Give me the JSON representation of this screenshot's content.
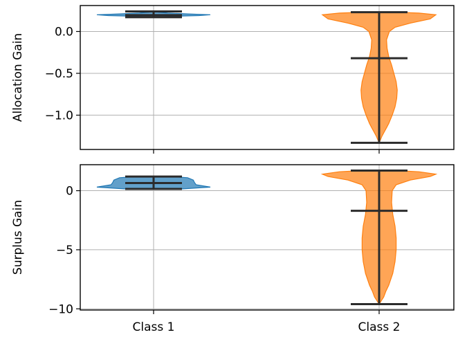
{
  "chart_data": {
    "type": "violin",
    "categories": [
      "Class 1",
      "Class 2"
    ],
    "colors": [
      "#1f77b4",
      "#ff7f0e"
    ],
    "grid": true,
    "panels": [
      {
        "ylabel": "Allocation Gain",
        "ylim": [
          -1.41,
          0.31
        ],
        "yticks": [
          0.0,
          -0.5,
          -1.0
        ],
        "ytick_labels": [
          "0.0",
          "−0.5",
          "−1.0"
        ],
        "violins": [
          {
            "category": "Class 1",
            "min": 0.17,
            "mean": 0.195,
            "max": 0.24,
            "profile": [
              [
                0.17,
                0.05
              ],
              [
                0.18,
                0.25
              ],
              [
                0.19,
                0.8
              ],
              [
                0.2,
                1.0
              ],
              [
                0.21,
                0.6
              ],
              [
                0.22,
                0.25
              ],
              [
                0.23,
                0.08
              ],
              [
                0.24,
                0.02
              ]
            ]
          },
          {
            "category": "Class 2",
            "min": -1.33,
            "mean": -0.32,
            "max": 0.23,
            "profile": [
              [
                -1.33,
                0.0
              ],
              [
                -1.3,
                0.02
              ],
              [
                -1.25,
                0.05
              ],
              [
                -1.2,
                0.09
              ],
              [
                -1.15,
                0.13
              ],
              [
                -1.1,
                0.17
              ],
              [
                -1.0,
                0.23
              ],
              [
                -0.9,
                0.28
              ],
              [
                -0.8,
                0.31
              ],
              [
                -0.7,
                0.32
              ],
              [
                -0.6,
                0.3
              ],
              [
                -0.5,
                0.26
              ],
              [
                -0.4,
                0.22
              ],
              [
                -0.3,
                0.17
              ],
              [
                -0.2,
                0.14
              ],
              [
                -0.1,
                0.13
              ],
              [
                0.0,
                0.18
              ],
              [
                0.05,
                0.28
              ],
              [
                0.1,
                0.55
              ],
              [
                0.15,
                0.9
              ],
              [
                0.2,
                1.0
              ],
              [
                0.22,
                0.7
              ],
              [
                0.23,
                0.3
              ]
            ]
          }
        ]
      },
      {
        "ylabel": "Surplus Gain",
        "ylim": [
          -10.1,
          2.2
        ],
        "yticks": [
          0,
          -5,
          -10
        ],
        "ytick_labels": [
          "0",
          "−5",
          "−10"
        ],
        "violins": [
          {
            "category": "Class 1",
            "min": 0.15,
            "mean": 0.65,
            "max": 1.2,
            "profile": [
              [
                0.15,
                0.5
              ],
              [
                0.3,
                1.0
              ],
              [
                0.5,
                0.75
              ],
              [
                0.7,
                0.72
              ],
              [
                0.9,
                0.7
              ],
              [
                1.1,
                0.6
              ],
              [
                1.2,
                0.3
              ]
            ]
          },
          {
            "category": "Class 2",
            "min": -9.6,
            "mean": -1.7,
            "max": 1.7,
            "profile": [
              [
                -9.6,
                0.0
              ],
              [
                -9.3,
                0.04
              ],
              [
                -9.0,
                0.08
              ],
              [
                -8.5,
                0.12
              ],
              [
                -8.0,
                0.17
              ],
              [
                -7.0,
                0.24
              ],
              [
                -6.0,
                0.28
              ],
              [
                -5.0,
                0.3
              ],
              [
                -4.0,
                0.3
              ],
              [
                -3.0,
                0.28
              ],
              [
                -2.0,
                0.24
              ],
              [
                -1.0,
                0.22
              ],
              [
                0.0,
                0.23
              ],
              [
                0.5,
                0.3
              ],
              [
                0.9,
                0.55
              ],
              [
                1.2,
                0.9
              ],
              [
                1.4,
                1.0
              ],
              [
                1.6,
                0.7
              ],
              [
                1.7,
                0.3
              ]
            ]
          }
        ]
      }
    ]
  }
}
